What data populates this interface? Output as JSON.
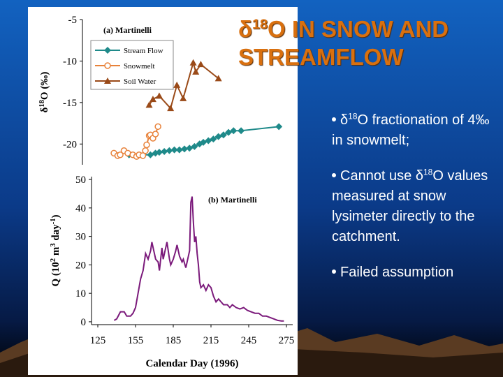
{
  "title": [
    "δ",
    "18",
    "O IN SNOW AND STREAMFLOW"
  ],
  "bullets": [
    [
      "δ",
      "18",
      "O fractionation of 4‰ in snowmelt;"
    ],
    [
      "Cannot use δ",
      "18",
      "O values measured at snow lysimeter directly to the catchment."
    ],
    [
      "Failed assumption"
    ]
  ],
  "chart_data": [
    {
      "type": "line",
      "annotation": "(a) Martinelli",
      "y_label": [
        "δ",
        "18",
        "O (‰)"
      ],
      "xlim": [
        113,
        280
      ],
      "ylim": [
        -22.5,
        -5
      ],
      "yticks": [
        -5,
        -10,
        -15,
        -20
      ],
      "legend": "upper left",
      "series": [
        {
          "name": "Stream Flow",
          "color": "#1f8a8a",
          "marker": "diamond",
          "x": [
            150,
            167,
            171,
            174,
            178,
            182,
            186,
            190,
            194,
            198,
            202,
            206,
            209,
            213,
            217,
            221,
            225,
            229,
            233,
            239,
            269
          ],
          "values": [
            -21.3,
            -21.3,
            -21.1,
            -21.0,
            -20.9,
            -20.8,
            -20.7,
            -20.7,
            -20.6,
            -20.5,
            -20.3,
            -20.0,
            -19.8,
            -19.6,
            -19.4,
            -19.1,
            -18.9,
            -18.6,
            -18.4,
            -18.4,
            -17.9
          ]
        },
        {
          "name": "Snowmelt",
          "color": "#e8823a",
          "marker": "circle-open",
          "x": [
            138,
            141,
            143,
            146,
            149,
            153,
            156,
            158,
            161,
            163,
            164,
            166,
            167,
            169,
            171,
            173
          ],
          "values": [
            -21.1,
            -21.4,
            -21.3,
            -20.8,
            -21.1,
            -21.3,
            -21.5,
            -21.3,
            -21.4,
            -20.8,
            -20.1,
            -19.0,
            -18.9,
            -19.3,
            -18.8,
            -17.9
          ]
        },
        {
          "name": "Soil Water",
          "color": "#9a4a18",
          "marker": "triangle",
          "x": [
            166,
            169,
            174,
            183,
            188,
            193,
            201,
            203,
            207,
            221
          ],
          "values": [
            -15.3,
            -14.6,
            -14.2,
            -15.7,
            -12.9,
            -14.5,
            -10.2,
            -11.3,
            -10.4,
            -12.1
          ]
        }
      ]
    },
    {
      "type": "line",
      "annotation": "(b) Martinelli",
      "y_label": [
        "Q (10",
        "2",
        " m",
        "3",
        " day",
        "-1",
        ")"
      ],
      "x_label": "Calendar Day (1996)",
      "xlim": [
        120,
        280
      ],
      "ylim": [
        -1,
        51
      ],
      "xticks": [
        125,
        155,
        185,
        215,
        245,
        275
      ],
      "yticks": [
        0,
        10,
        20,
        30,
        40,
        50
      ],
      "series": [
        {
          "color": "#7b1a7b",
          "x": [
            138,
            140,
            143,
            146,
            148,
            151,
            153,
            155,
            157,
            159,
            161,
            163,
            165,
            167,
            168,
            170,
            171,
            173,
            174,
            175,
            176,
            177,
            179,
            180,
            182,
            183,
            185,
            187,
            188,
            190,
            192,
            193,
            195,
            197,
            198,
            199,
            200,
            201,
            202,
            203,
            204,
            205,
            206,
            207,
            209,
            211,
            213,
            215,
            217,
            219,
            221,
            223,
            225,
            228,
            230,
            232,
            235,
            238,
            241,
            244,
            247,
            250,
            253,
            256,
            259,
            262,
            265,
            268,
            271,
            273
          ],
          "values": [
            0.5,
            1,
            3.5,
            3.5,
            2,
            2,
            3,
            5,
            10,
            15,
            18,
            24,
            22,
            25,
            28,
            24,
            22,
            21,
            18,
            22,
            26,
            22,
            26,
            28,
            22,
            20,
            22,
            25,
            27,
            23,
            21,
            22,
            19,
            23,
            25,
            42,
            44,
            35,
            28,
            30,
            24,
            20,
            14,
            12,
            13,
            11,
            13,
            12,
            9,
            7,
            8,
            7,
            6,
            6,
            5,
            6,
            5,
            4.5,
            5,
            4,
            3.5,
            3,
            3,
            2,
            2,
            1.5,
            1,
            0.5,
            0.3,
            0.3
          ]
        }
      ]
    }
  ]
}
